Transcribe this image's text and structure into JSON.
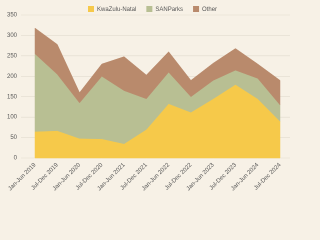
{
  "chart_data": {
    "type": "stacked_area",
    "categories": [
      "Jan-Jun 2019",
      "Jul-Dec 2019",
      "Jan-Jun 2020",
      "Jul-Dec 2020",
      "Jan-Jun 2021",
      "Jul-Dec 2021",
      "Jan-Jun 2022",
      "Jul-Dec 2022",
      "Jan-Jun 2023",
      "Jul-Dec 2023",
      "Jan-Jun 2024",
      "Jul-Dec 2024"
    ],
    "series": [
      {
        "name": "KwaZulu-Natal",
        "color": "#f6c94a",
        "values": [
          65,
          67,
          48,
          47,
          35,
          70,
          133,
          112,
          145,
          180,
          145,
          90
        ]
      },
      {
        "name": "SANParks",
        "color": "#b8bf93",
        "values": [
          190,
          138,
          87,
          153,
          130,
          75,
          77,
          38,
          45,
          35,
          50,
          40
        ]
      },
      {
        "name": "Other",
        "color": "#b98a6c",
        "values": [
          63,
          73,
          25,
          30,
          83,
          58,
          50,
          40,
          42,
          53,
          35,
          60
        ]
      }
    ],
    "ylim": [
      0,
      350
    ],
    "yticks": [
      0,
      50,
      100,
      150,
      200,
      250,
      300,
      350
    ],
    "grid": true,
    "legend": "top"
  }
}
